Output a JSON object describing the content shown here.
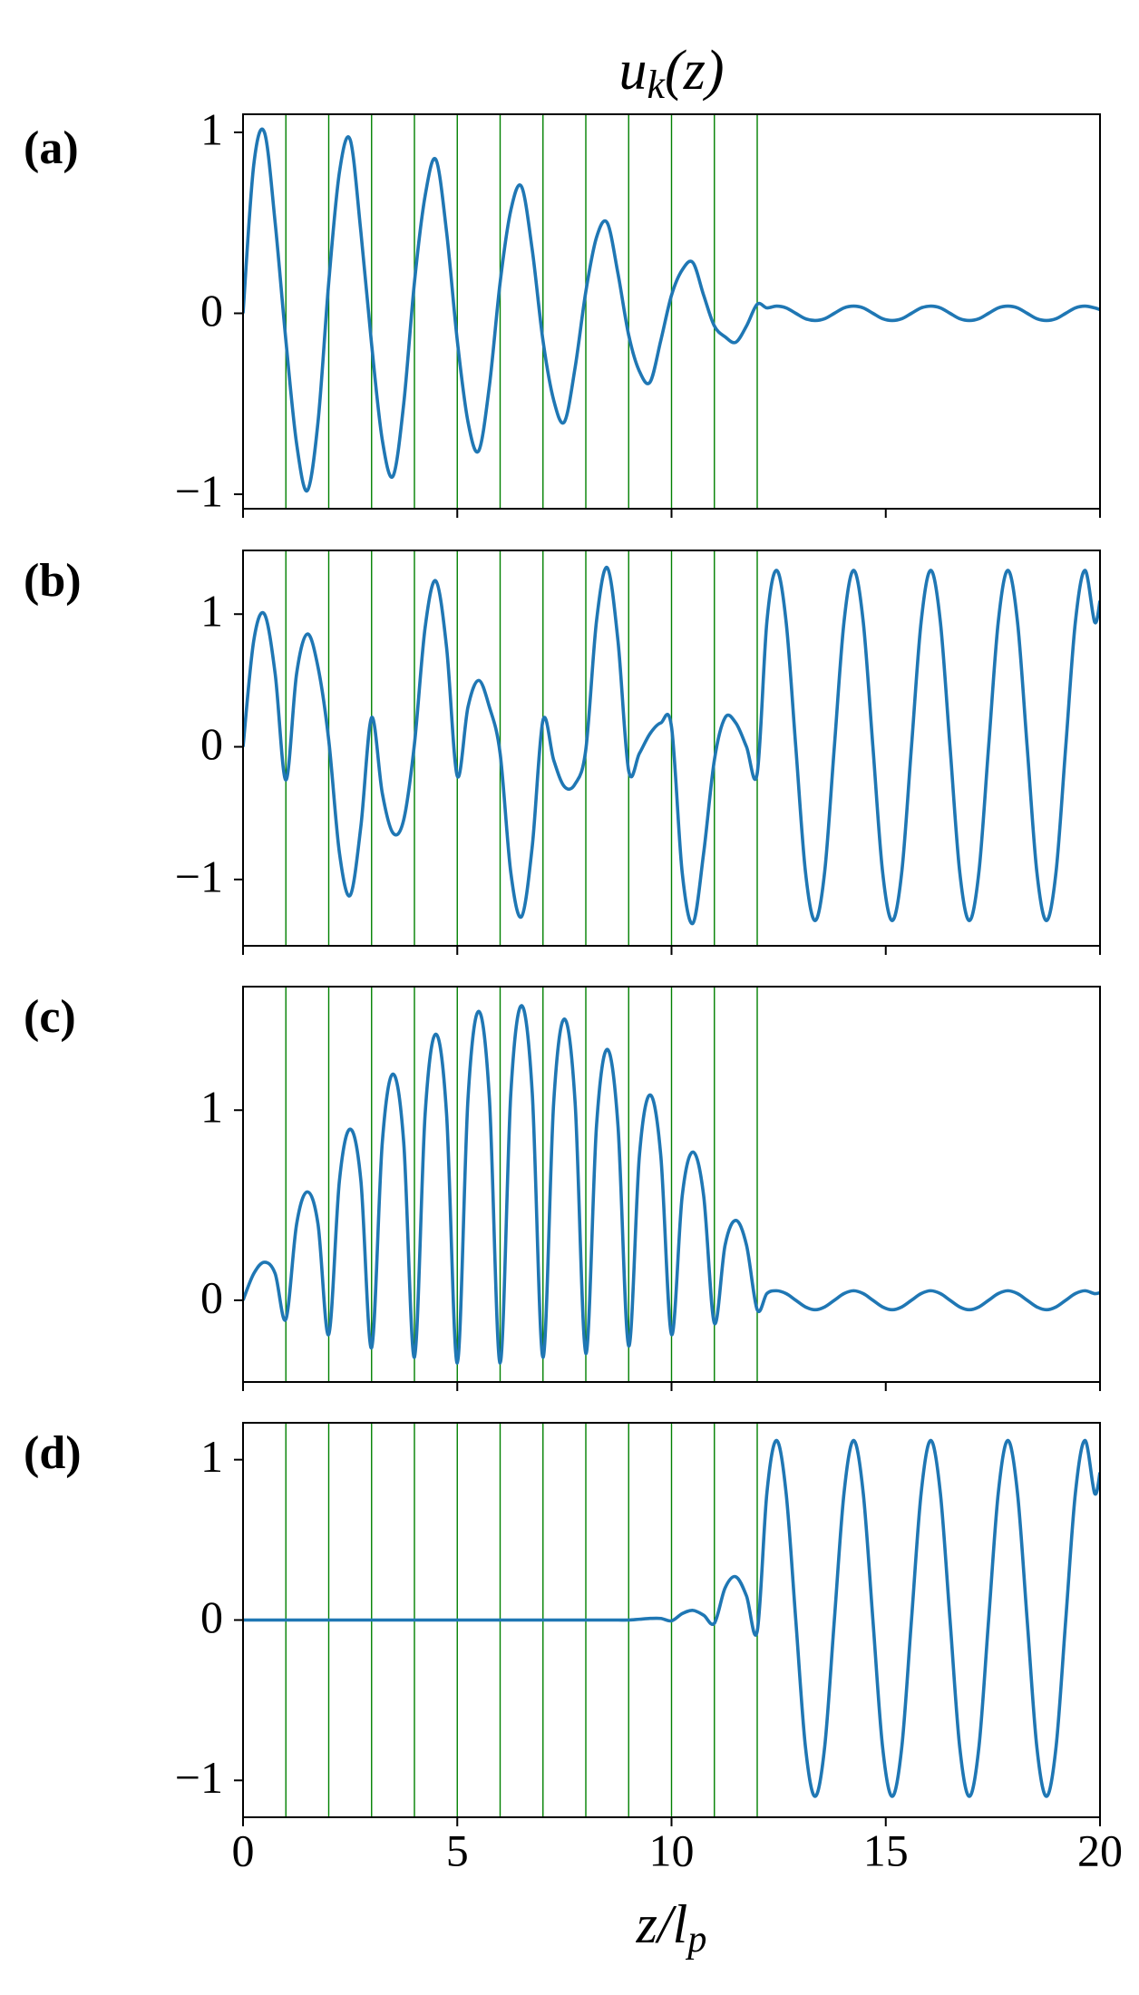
{
  "chart_data": [
    {
      "type": "line",
      "label": "(a)",
      "title_parts": [
        "u",
        "k",
        "(z)"
      ],
      "x": [
        0,
        0.25,
        0.5,
        0.75,
        1,
        1.25,
        1.5,
        1.75,
        2,
        2.25,
        2.5,
        2.75,
        3,
        3.25,
        3.5,
        3.75,
        4,
        4.25,
        4.5,
        4.75,
        5,
        5.25,
        5.5,
        5.75,
        6,
        6.25,
        6.5,
        6.75,
        7,
        7.25,
        7.5,
        7.75,
        8,
        8.25,
        8.5,
        8.75,
        9,
        9.25,
        9.5,
        9.75,
        10,
        10.25,
        10.5,
        10.75,
        11,
        11.25,
        11.5,
        11.75,
        12,
        12.225,
        12.45,
        12.675,
        12.9,
        13.125,
        13.35,
        13.575,
        13.8,
        14.025,
        14.25,
        14.475,
        14.7,
        14.925,
        15.15,
        15.375,
        15.6,
        15.825,
        16.05,
        16.275,
        16.5,
        16.725,
        16.95,
        17.175,
        17.4,
        17.625,
        17.85,
        18.075,
        18.3,
        18.525,
        18.75,
        18.975,
        19.2,
        19.425,
        19.65,
        19.875,
        20
      ],
      "values": [
        0,
        0.82,
        1.0,
        0.5,
        -0.15,
        -0.72,
        -0.98,
        -0.6,
        0.17,
        0.78,
        0.96,
        0.45,
        -0.17,
        -0.7,
        -0.9,
        -0.5,
        0.17,
        0.65,
        0.85,
        0.45,
        -0.15,
        -0.6,
        -0.76,
        -0.4,
        0.17,
        0.57,
        0.7,
        0.35,
        -0.15,
        -0.48,
        -0.6,
        -0.3,
        0.12,
        0.42,
        0.5,
        0.22,
        -0.12,
        -0.32,
        -0.38,
        -0.15,
        0.1,
        0.24,
        0.28,
        0.1,
        -0.07,
        -0.13,
        -0.16,
        -0.07,
        0.05,
        0.03,
        0.04,
        0.03,
        0,
        -0.03,
        -0.04,
        -0.03,
        0,
        0.03,
        0.04,
        0.03,
        0,
        -0.03,
        -0.04,
        -0.03,
        0,
        0.03,
        0.04,
        0.03,
        0,
        -0.03,
        -0.04,
        -0.03,
        0,
        0.03,
        0.04,
        0.03,
        0,
        -0.03,
        -0.04,
        -0.03,
        0,
        0.03,
        0.04,
        0.03,
        0.02
      ],
      "color": "#1f77b4",
      "vlines": [
        1,
        2,
        3,
        4,
        5,
        6,
        7,
        8,
        9,
        10,
        11,
        12
      ],
      "vline_color": "#008000",
      "xlim": [
        0,
        20
      ],
      "xticks": [
        0,
        5,
        10,
        15,
        20
      ],
      "xticklabels": false,
      "ylim": [
        -1.08,
        1.1
      ],
      "yticks": [
        {
          "value": -1,
          "label": "−1"
        },
        0,
        1
      ]
    },
    {
      "type": "line",
      "label": "(b)",
      "x": [
        0,
        0.25,
        0.5,
        0.75,
        1,
        1.25,
        1.5,
        1.75,
        2,
        2.25,
        2.5,
        2.75,
        3,
        3.25,
        3.5,
        3.75,
        4,
        4.25,
        4.5,
        4.75,
        5,
        5.25,
        5.5,
        5.75,
        6,
        6.25,
        6.5,
        6.75,
        7,
        7.25,
        7.5,
        7.75,
        8,
        8.25,
        8.5,
        8.75,
        9,
        9.25,
        9.5,
        9.75,
        10,
        10.25,
        10.5,
        10.75,
        11,
        11.25,
        11.5,
        11.75,
        12,
        12.225,
        12.45,
        12.675,
        12.9,
        13.125,
        13.35,
        13.575,
        13.8,
        14.025,
        14.25,
        14.475,
        14.7,
        14.925,
        15.15,
        15.375,
        15.6,
        15.825,
        16.05,
        16.275,
        16.5,
        16.725,
        16.95,
        17.175,
        17.4,
        17.625,
        17.85,
        18.075,
        18.3,
        18.525,
        18.75,
        18.975,
        19.2,
        19.425,
        19.65,
        19.875,
        20
      ],
      "values": [
        0,
        0.8,
        1.0,
        0.55,
        -0.25,
        0.55,
        0.85,
        0.6,
        0.05,
        -0.8,
        -1.12,
        -0.6,
        0.22,
        -0.35,
        -0.65,
        -0.55,
        0.02,
        0.9,
        1.25,
        0.75,
        -0.22,
        0.3,
        0.5,
        0.3,
        -0.05,
        -0.95,
        -1.28,
        -0.75,
        0.2,
        -0.1,
        -0.3,
        -0.28,
        -0.02,
        0.95,
        1.35,
        0.8,
        -0.18,
        -0.05,
        0.1,
        0.18,
        0.15,
        -0.95,
        -1.33,
        -0.8,
        -0.1,
        0.22,
        0.18,
        0.0,
        -0.2,
        0.94,
        1.33,
        0.94,
        0,
        -0.94,
        -1.31,
        -0.94,
        0,
        0.94,
        1.33,
        0.94,
        0,
        -0.94,
        -1.31,
        -0.94,
        0,
        0.94,
        1.33,
        0.94,
        0,
        -0.94,
        -1.31,
        -0.94,
        0,
        0.94,
        1.33,
        0.94,
        0,
        -0.94,
        -1.31,
        -0.94,
        0,
        0.94,
        1.33,
        0.94,
        1.1
      ],
      "color": "#1f77b4",
      "vlines": [
        1,
        2,
        3,
        4,
        5,
        6,
        7,
        8,
        9,
        10,
        11,
        12
      ],
      "vline_color": "#008000",
      "xlim": [
        0,
        20
      ],
      "xticks": [
        0,
        5,
        10,
        15,
        20
      ],
      "xticklabels": false,
      "ylim": [
        -1.5,
        1.48
      ],
      "yticks": [
        {
          "value": -1,
          "label": "−1"
        },
        0,
        1
      ]
    },
    {
      "type": "line",
      "label": "(c)",
      "x": [
        0,
        0.25,
        0.5,
        0.75,
        1,
        1.25,
        1.5,
        1.75,
        2,
        2.25,
        2.5,
        2.75,
        3,
        3.25,
        3.5,
        3.75,
        4,
        4.25,
        4.5,
        4.75,
        5,
        5.25,
        5.5,
        5.75,
        6,
        6.25,
        6.5,
        6.75,
        7,
        7.25,
        7.5,
        7.75,
        8,
        8.25,
        8.5,
        8.75,
        9,
        9.25,
        9.5,
        9.75,
        10,
        10.25,
        10.5,
        10.75,
        11,
        11.25,
        11.5,
        11.75,
        12,
        12.225,
        12.45,
        12.675,
        12.9,
        13.125,
        13.35,
        13.575,
        13.8,
        14.025,
        14.25,
        14.475,
        14.7,
        14.925,
        15.15,
        15.375,
        15.6,
        15.825,
        16.05,
        16.275,
        16.5,
        16.725,
        16.95,
        17.175,
        17.4,
        17.625,
        17.85,
        18.075,
        18.3,
        18.525,
        18.75,
        18.975,
        19.2,
        19.425,
        19.65,
        19.875,
        20
      ],
      "values": [
        0,
        0.14,
        0.2,
        0.14,
        -0.1,
        0.4,
        0.57,
        0.4,
        -0.18,
        0.63,
        0.9,
        0.63,
        -0.25,
        0.83,
        1.19,
        0.83,
        -0.3,
        0.98,
        1.4,
        0.98,
        -0.33,
        1.06,
        1.52,
        1.06,
        -0.33,
        1.09,
        1.55,
        1.09,
        -0.3,
        1.04,
        1.48,
        1.04,
        -0.28,
        0.92,
        1.32,
        0.92,
        -0.24,
        0.76,
        1.08,
        0.76,
        -0.18,
        0.55,
        0.78,
        0.55,
        -0.12,
        0.29,
        0.42,
        0.29,
        -0.05,
        0.035,
        0.05,
        0.035,
        0,
        -0.035,
        -0.05,
        -0.035,
        0,
        0.035,
        0.05,
        0.035,
        0,
        -0.035,
        -0.05,
        -0.035,
        0,
        0.035,
        0.05,
        0.035,
        0,
        -0.035,
        -0.05,
        -0.035,
        0,
        0.035,
        0.05,
        0.035,
        0,
        -0.035,
        -0.05,
        -0.035,
        0,
        0.035,
        0.05,
        0.035,
        0.04
      ],
      "color": "#1f77b4",
      "vlines": [
        1,
        2,
        3,
        4,
        5,
        6,
        7,
        8,
        9,
        10,
        11,
        12
      ],
      "vline_color": "#008000",
      "xlim": [
        0,
        20
      ],
      "xticks": [
        0,
        5,
        10,
        15,
        20
      ],
      "xticklabels": false,
      "ylim": [
        -0.43,
        1.65
      ],
      "yticks": [
        0,
        1
      ]
    },
    {
      "type": "line",
      "label": "(d)",
      "xlabel_parts": [
        "z/l",
        "p"
      ],
      "x": [
        0,
        0.25,
        0.5,
        0.75,
        1,
        1.25,
        1.5,
        1.75,
        2,
        2.25,
        2.5,
        2.75,
        3,
        3.25,
        3.5,
        3.75,
        4,
        4.25,
        4.5,
        4.75,
        5,
        5.25,
        5.5,
        5.75,
        6,
        6.25,
        6.5,
        6.75,
        7,
        7.25,
        7.5,
        7.75,
        8,
        8.25,
        8.5,
        8.75,
        9,
        9.25,
        9.5,
        9.75,
        10,
        10.25,
        10.5,
        10.75,
        11,
        11.25,
        11.5,
        11.75,
        12,
        12.225,
        12.45,
        12.675,
        12.9,
        13.125,
        13.35,
        13.575,
        13.8,
        14.025,
        14.25,
        14.475,
        14.7,
        14.925,
        15.15,
        15.375,
        15.6,
        15.825,
        16.05,
        16.275,
        16.5,
        16.725,
        16.95,
        17.175,
        17.4,
        17.625,
        17.85,
        18.075,
        18.3,
        18.525,
        18.75,
        18.975,
        19.2,
        19.425,
        19.65,
        19.875,
        20
      ],
      "values": [
        0,
        0,
        0,
        0,
        0,
        0,
        0,
        0,
        0,
        0,
        0,
        0,
        0,
        0,
        0,
        0,
        0,
        0,
        0,
        0,
        0,
        0,
        0,
        0,
        0,
        0,
        0,
        0,
        0,
        0,
        0,
        0,
        0,
        0,
        0,
        0,
        0,
        0.005,
        0.01,
        0.01,
        -0.005,
        0.04,
        0.06,
        0.03,
        -0.02,
        0.2,
        0.27,
        0.15,
        -0.07,
        0.79,
        1.12,
        0.79,
        0,
        -0.79,
        -1.1,
        -0.79,
        0,
        0.79,
        1.12,
        0.79,
        0,
        -0.79,
        -1.1,
        -0.79,
        0,
        0.79,
        1.12,
        0.79,
        0,
        -0.79,
        -1.1,
        -0.79,
        0,
        0.79,
        1.12,
        0.79,
        0,
        -0.79,
        -1.1,
        -0.79,
        0,
        0.79,
        1.12,
        0.79,
        0.92
      ],
      "color": "#1f77b4",
      "vlines": [
        1,
        2,
        3,
        4,
        5,
        6,
        7,
        8,
        9,
        10,
        11,
        12
      ],
      "vline_color": "#008000",
      "xlim": [
        0,
        20
      ],
      "xticks": [
        0,
        5,
        10,
        15,
        20
      ],
      "xticklabels": true,
      "ylim": [
        -1.23,
        1.23
      ],
      "yticks": [
        {
          "value": -1,
          "label": "−1"
        },
        0,
        1
      ]
    }
  ]
}
